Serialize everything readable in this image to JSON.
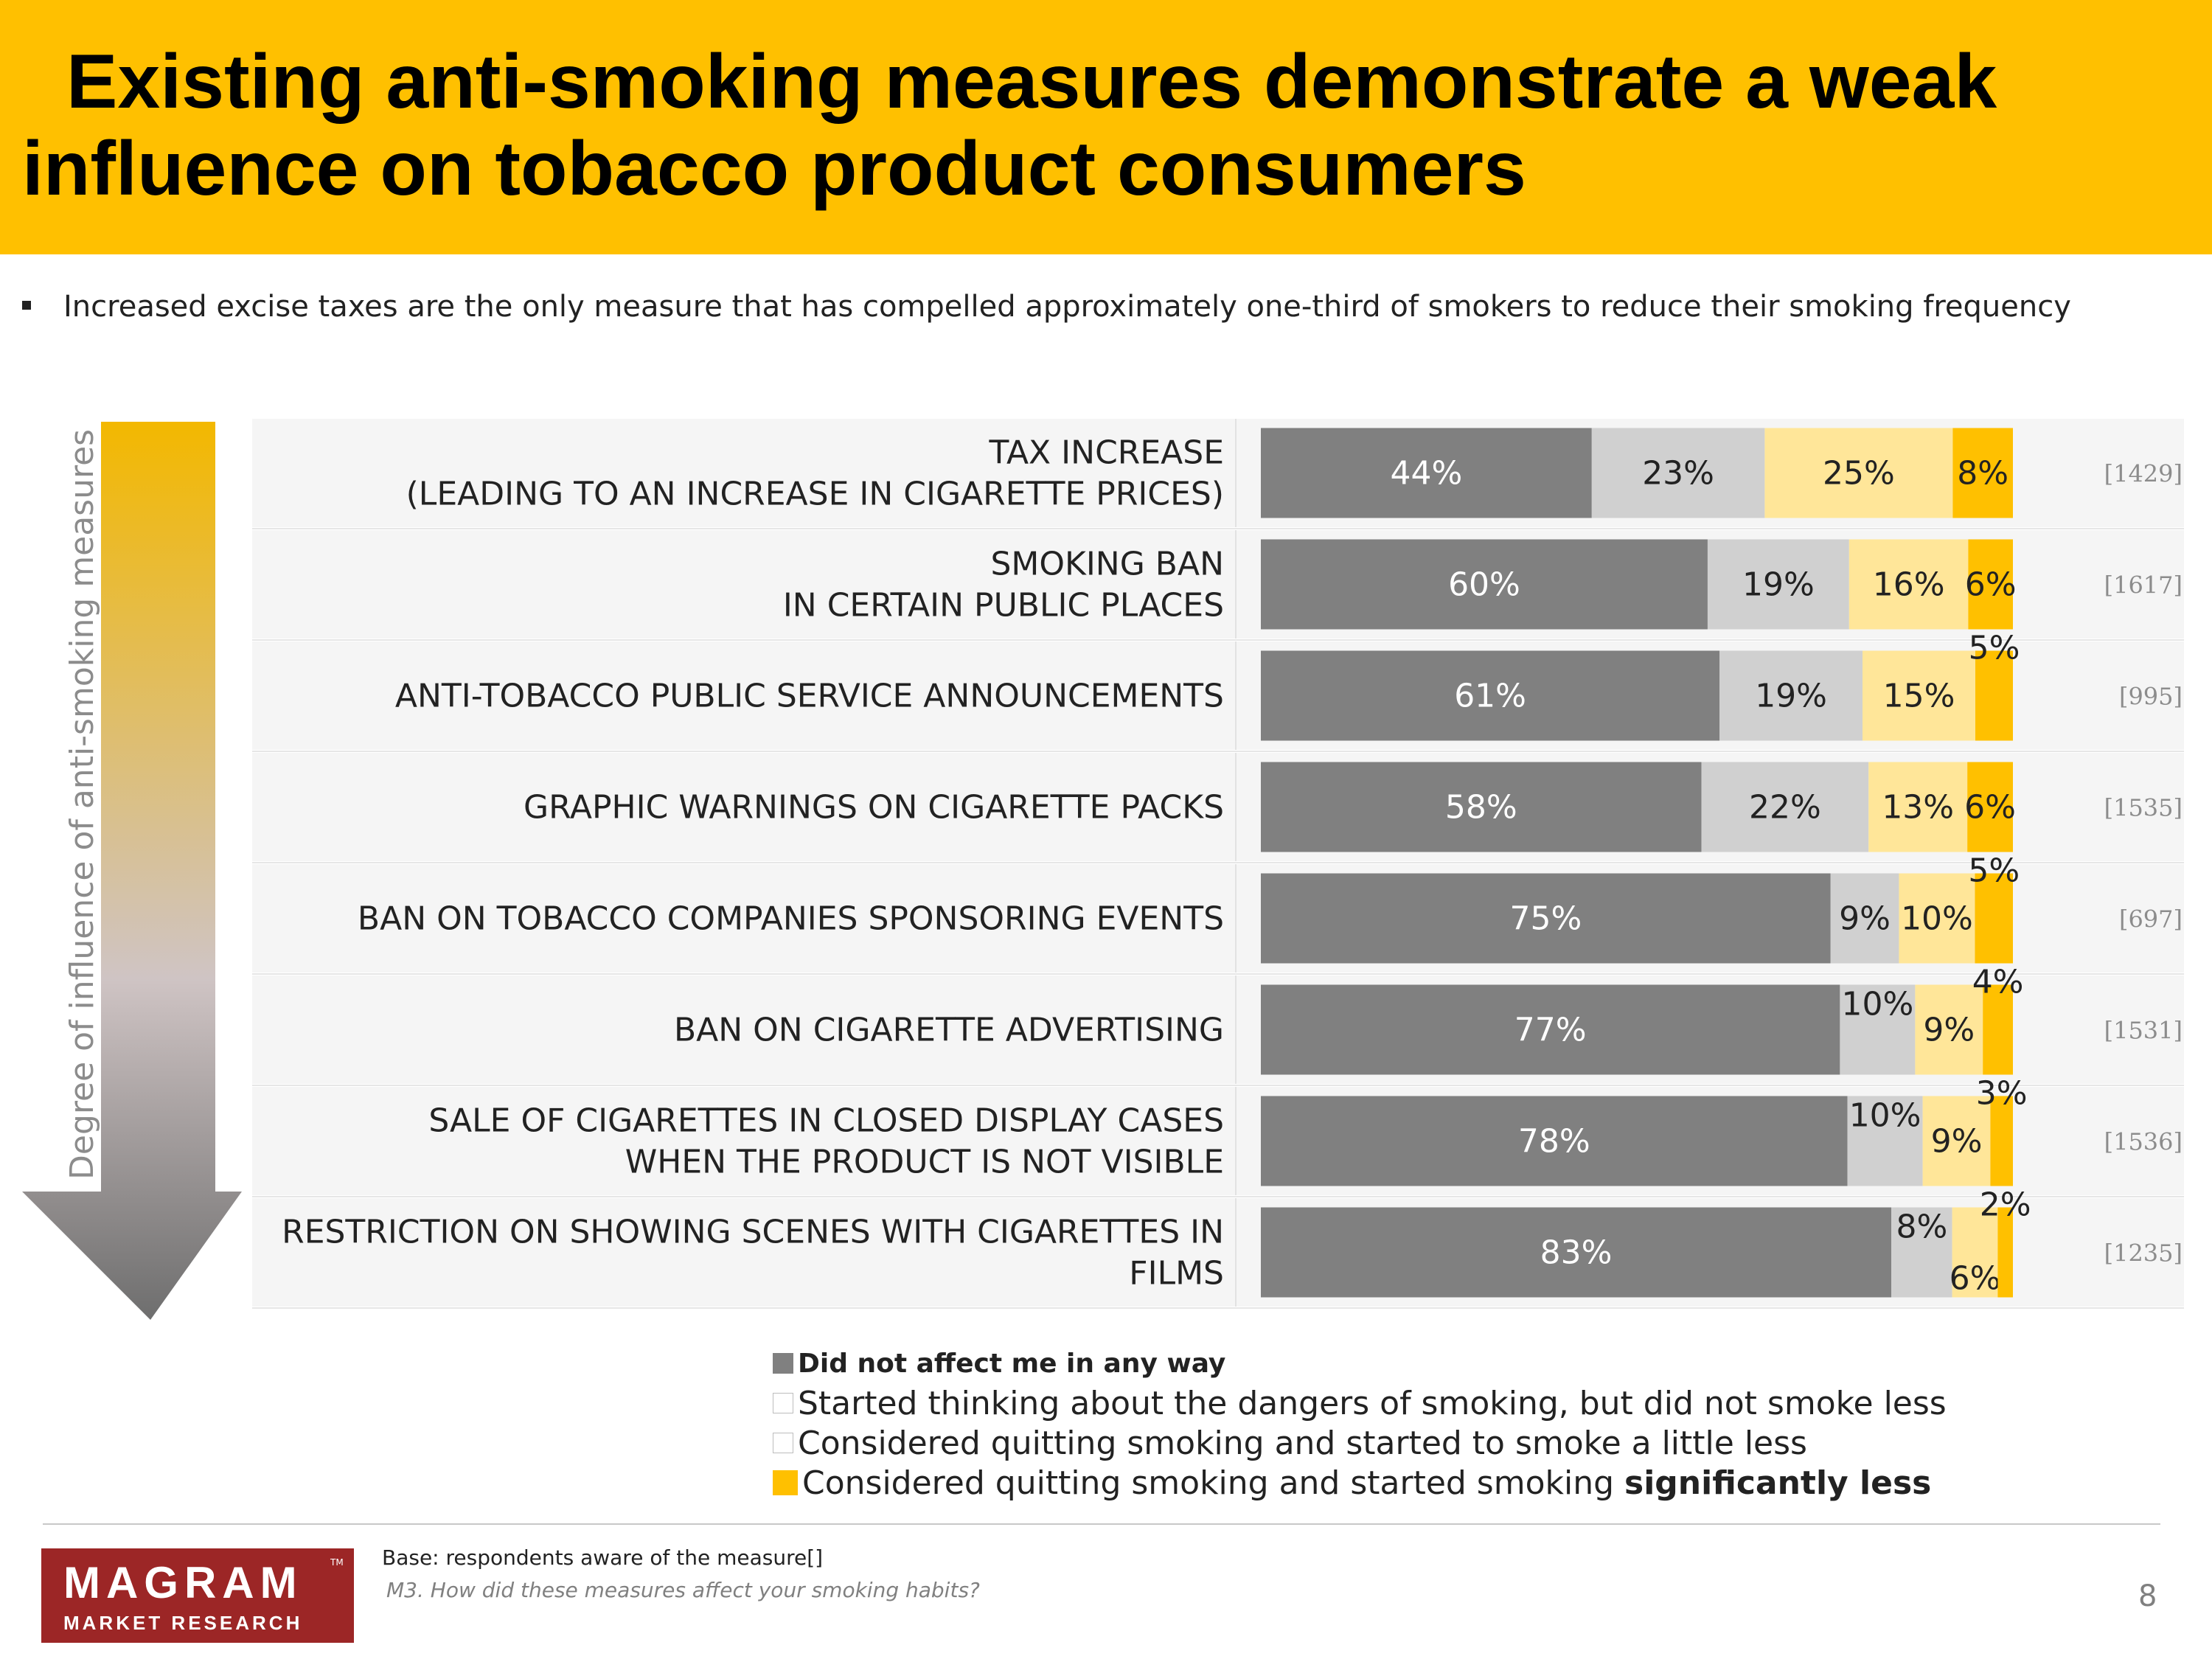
{
  "title": {
    "line1": "Existing anti-smoking measures demonstrate a weak",
    "line2": "influence on tobacco product consumers"
  },
  "bullet": "Increased excise taxes are the only measure that has compelled approximately one-third of smokers to reduce their smoking frequency",
  "axis_label": "Degree of influence of anti-smoking measures",
  "colors": {
    "header": "#FFC000",
    "did_not_affect": "#808080",
    "started_thinking": "#D0D0D0",
    "smoke_little_less": "#FFE699",
    "smoke_significantly_less": "#FFC000",
    "row_band": "#F5F5F5"
  },
  "chart_data": {
    "type": "bar",
    "orientation": "horizontal",
    "stacked": true,
    "normalized_percent": true,
    "categories": [
      [
        "TAX INCREASE",
        "(LEADING TO AN INCREASE IN CIGARETTE PRICES)"
      ],
      [
        "SMOKING BAN",
        "IN CERTAIN PUBLIC PLACES"
      ],
      [
        "ANTI-TOBACCO PUBLIC SERVICE ANNOUNCEMENTS"
      ],
      [
        "GRAPHIC WARNINGS ON CIGARETTE PACKS"
      ],
      [
        "BAN ON TOBACCO COMPANIES SPONSORING EVENTS"
      ],
      [
        "BAN ON CIGARETTE ADVERTISING"
      ],
      [
        "SALE OF CIGARETTES IN CLOSED DISPLAY CASES",
        "WHEN THE PRODUCT IS NOT VISIBLE"
      ],
      [
        "RESTRICTION ON SHOWING SCENES WITH CIGARETTES IN",
        "FILMS"
      ]
    ],
    "bases": [
      "[1429]",
      "[1617]",
      "[995]",
      "[1535]",
      "[697]",
      "[1531]",
      "[1536]",
      "[1235]"
    ],
    "series": [
      {
        "name": "Did not affect me in any way",
        "values": [
          44,
          60,
          61,
          58,
          75,
          77,
          78,
          83
        ]
      },
      {
        "name": "Started thinking about the dangers of smoking, but did not smoke less",
        "values": [
          23,
          19,
          19,
          22,
          9,
          10,
          10,
          8
        ]
      },
      {
        "name": "Considered quitting smoking and started to smoke a little less",
        "values": [
          25,
          16,
          15,
          13,
          10,
          9,
          9,
          6
        ]
      },
      {
        "name": "Considered quitting smoking and started smoking significantly less",
        "values": [
          8,
          6,
          5,
          6,
          5,
          4,
          3,
          2
        ]
      }
    ],
    "value_suffix": "%"
  },
  "legend": {
    "items": [
      {
        "text": "Did not affect me in any way"
      },
      {
        "text": "Started thinking about the dangers of smoking, but did not smoke less"
      },
      {
        "text": "Considered quitting smoking and started to smoke a little less"
      },
      {
        "text": " Considered quitting smoking and started smoking ",
        "emphasis": "significantly less"
      }
    ]
  },
  "footer": {
    "logo_main": "MAGRAM",
    "logo_tm": "TM",
    "logo_sub": "MARKET RESEARCH",
    "base_note": "Base: respondents aware of the measure[]",
    "question": "M3. How did these measures affect your smoking habits?",
    "page_number": "8"
  }
}
